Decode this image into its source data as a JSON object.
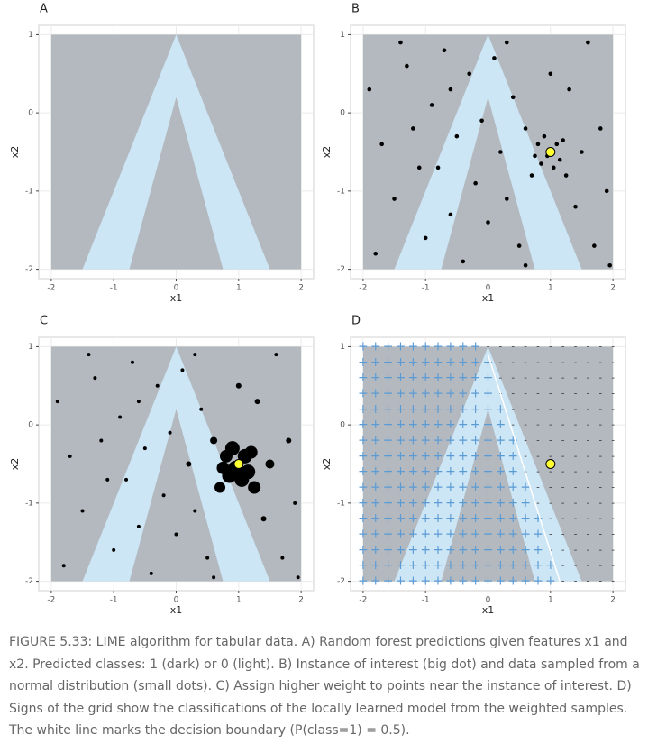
{
  "chart_data": [
    {
      "type": "raster",
      "title": "A",
      "xlabel": "x1",
      "ylabel": "x2",
      "xlim": [
        -2.2,
        2.2
      ],
      "ylim": [
        -2.12,
        1.12
      ],
      "xticks": [
        -2,
        -1,
        0,
        1,
        2
      ],
      "yticks": [
        -2,
        -1,
        0,
        1
      ]
    },
    {
      "type": "scatter",
      "title": "B",
      "xlabel": "x1",
      "ylabel": "x2",
      "xlim": [
        -2.2,
        2.2
      ],
      "ylim": [
        -2.12,
        1.12
      ],
      "xticks": [
        -2,
        -1,
        0,
        1,
        2
      ],
      "yticks": [
        -2,
        -1,
        0,
        1
      ],
      "x": [
        -1.9,
        -1.7,
        -1.5,
        -1.3,
        -1.2,
        -1.0,
        -0.9,
        -0.8,
        -0.7,
        -0.6,
        -0.5,
        -0.4,
        -0.3,
        -0.2,
        -0.1,
        0.0,
        0.1,
        0.2,
        0.3,
        0.4,
        0.5,
        0.6,
        0.7,
        0.8,
        0.85,
        0.9,
        0.95,
        1.05,
        1.1,
        1.15,
        1.2,
        1.25,
        0.75,
        1.3,
        1.4,
        1.5,
        1.6,
        1.7,
        1.8,
        1.9,
        -1.8,
        -1.4,
        -0.6,
        0.3,
        1.0,
        1.95,
        0.6,
        -1.1
      ],
      "y": [
        0.3,
        -0.4,
        -1.1,
        0.6,
        -0.2,
        -1.6,
        0.1,
        -0.7,
        0.8,
        -1.3,
        -0.3,
        -1.9,
        0.5,
        -0.9,
        -0.1,
        -1.4,
        0.7,
        -0.5,
        -1.1,
        0.2,
        -1.7,
        -0.2,
        -0.8,
        -0.4,
        -0.65,
        -0.3,
        -0.55,
        -0.7,
        -0.4,
        -0.6,
        -0.35,
        -0.8,
        -0.55,
        0.3,
        -1.2,
        -0.5,
        0.9,
        -1.7,
        -0.2,
        -1.0,
        -1.8,
        0.9,
        0.3,
        0.9,
        0.5,
        -1.95,
        -1.95,
        -0.7
      ],
      "instance": {
        "x": 1,
        "y": -0.5
      }
    },
    {
      "type": "scatter",
      "title": "C",
      "xlabel": "x1",
      "ylabel": "x2",
      "xlim": [
        -2.2,
        2.2
      ],
      "ylim": [
        -2.12,
        1.12
      ],
      "xticks": [
        -2,
        -1,
        0,
        1,
        2
      ],
      "yticks": [
        -2,
        -1,
        0,
        1
      ],
      "x": [
        -1.9,
        -1.7,
        -1.5,
        -1.3,
        -1.2,
        -1.0,
        -0.9,
        -0.8,
        -0.7,
        -0.6,
        -0.5,
        -0.4,
        -0.3,
        -0.2,
        -0.1,
        0.0,
        0.1,
        0.2,
        0.3,
        0.4,
        0.5,
        0.6,
        0.7,
        0.8,
        0.85,
        0.9,
        0.95,
        1.05,
        1.1,
        1.15,
        1.2,
        1.25,
        0.75,
        1.3,
        1.4,
        1.5,
        1.6,
        1.7,
        1.8,
        1.9,
        -1.8,
        -1.4,
        -0.6,
        0.3,
        1.0,
        1.95,
        0.6,
        -1.1
      ],
      "y": [
        0.3,
        -0.4,
        -1.1,
        0.6,
        -0.2,
        -1.6,
        0.1,
        -0.7,
        0.8,
        -1.3,
        -0.3,
        -1.9,
        0.5,
        -0.9,
        -0.1,
        -1.4,
        0.7,
        -0.5,
        -1.1,
        0.2,
        -1.7,
        -0.2,
        -0.8,
        -0.4,
        -0.65,
        -0.3,
        -0.55,
        -0.7,
        -0.4,
        -0.6,
        -0.35,
        -0.8,
        -0.55,
        0.3,
        -1.2,
        -0.5,
        0.9,
        -1.7,
        -0.2,
        -1.0,
        -1.8,
        0.9,
        0.3,
        0.9,
        0.5,
        -1.95,
        -1.95,
        -0.7
      ],
      "sizes": [
        2,
        2,
        2,
        2,
        2,
        2,
        2,
        2,
        2,
        2,
        2,
        2,
        2,
        2,
        2,
        2,
        2,
        3,
        2,
        2,
        2,
        4,
        6,
        7,
        8,
        8,
        8,
        8,
        8,
        8,
        7,
        7,
        7,
        3,
        3,
        5,
        2,
        2,
        3,
        2,
        2,
        2,
        2,
        2,
        3,
        2,
        2,
        2
      ],
      "instance": {
        "x": 1,
        "y": -0.5
      }
    },
    {
      "type": "signs",
      "title": "D",
      "xlabel": "x1",
      "ylabel": "x2",
      "xlim": [
        -2.2,
        2.2
      ],
      "ylim": [
        -2.12,
        1.12
      ],
      "xticks": [
        -2,
        -1,
        0,
        1,
        2
      ],
      "yticks": [
        -2,
        -1,
        0,
        1
      ],
      "signs": [
        "+",
        "-"
      ],
      "instance": {
        "x": 1,
        "y": -0.5
      }
    }
  ],
  "caption": "FIGURE 5.33: LIME algorithm for tabular data. A) Random forest predictions given features x1 and x2. Predicted classes: 1 (dark) or 0 (light). B) Instance of interest (big dot) and data sampled from a normal distribution (small dots). C) Assign higher weight to points near the instance of interest. D) Signs of the grid show the classifications of the locally learned model from the weighted samples. The white line marks the decision boundary (P(class=1) = 0.5)."
}
